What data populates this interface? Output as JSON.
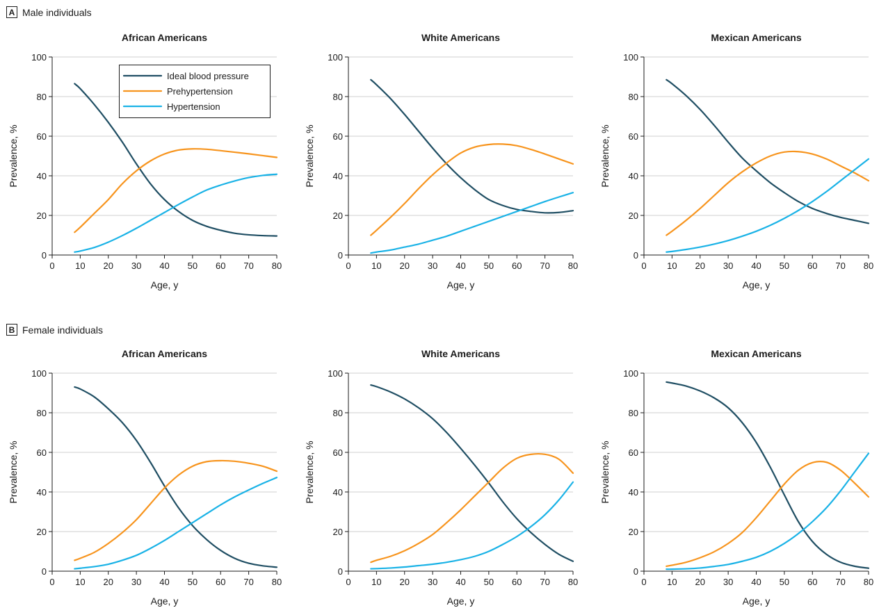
{
  "panels": [
    {
      "letter": "A",
      "title": "Male individuals"
    },
    {
      "letter": "B",
      "title": "Female individuals"
    }
  ],
  "colors": {
    "ideal": "#1f4e63",
    "prehyp": "#f7941d",
    "hyp": "#19b2e6"
  },
  "legend": [
    "Ideal blood pressure",
    "Prehypertension",
    "Hypertension"
  ],
  "chart_data": [
    {
      "type": "line",
      "panel": "A",
      "title": "African Americans",
      "xlabel": "Age, y",
      "ylabel": "Prevalence, %",
      "xlim": [
        0,
        80
      ],
      "ylim": [
        0,
        100
      ],
      "xticks": [
        0,
        10,
        20,
        30,
        40,
        50,
        60,
        70,
        80
      ],
      "yticks": [
        0,
        20,
        40,
        60,
        80,
        100
      ],
      "grid": true,
      "legend": "top-right",
      "x": [
        8,
        10,
        15,
        20,
        25,
        30,
        35,
        40,
        45,
        50,
        55,
        60,
        65,
        70,
        75,
        80
      ],
      "series": [
        {
          "name": "Ideal blood pressure",
          "values": [
            86.5,
            84,
            76,
            67,
            57,
            46,
            36,
            28,
            22,
            17.5,
            14.5,
            12.5,
            11,
            10.2,
            9.8,
            9.6
          ]
        },
        {
          "name": "Prehypertension",
          "values": [
            11.5,
            14,
            21,
            28,
            36,
            42.5,
            47.5,
            51,
            53,
            53.6,
            53.4,
            52.7,
            51.9,
            51.1,
            50.2,
            49.3
          ]
        },
        {
          "name": "Hypertension",
          "values": [
            1.5,
            2,
            3.8,
            6.5,
            9.8,
            13.5,
            17.5,
            21.5,
            25.5,
            29.3,
            32.8,
            35.3,
            37.4,
            39.1,
            40.2,
            40.8
          ]
        }
      ]
    },
    {
      "type": "line",
      "panel": "A",
      "title": "White Americans",
      "xlabel": "Age, y",
      "ylabel": "Prevalence, %",
      "xlim": [
        0,
        80
      ],
      "ylim": [
        0,
        100
      ],
      "xticks": [
        0,
        10,
        20,
        30,
        40,
        50,
        60,
        70,
        80
      ],
      "yticks": [
        0,
        20,
        40,
        60,
        80,
        100
      ],
      "grid": true,
      "x": [
        8,
        10,
        15,
        20,
        25,
        30,
        35,
        40,
        45,
        50,
        55,
        60,
        65,
        70,
        75,
        80
      ],
      "series": [
        {
          "name": "Ideal blood pressure",
          "values": [
            88.5,
            86,
            79,
            71,
            62.5,
            54,
            46,
            39,
            33,
            28,
            25,
            23,
            22,
            21.3,
            21.5,
            22.4
          ]
        },
        {
          "name": "Prehypertension",
          "values": [
            10,
            12.5,
            19,
            26,
            33.5,
            40.5,
            46.5,
            51.5,
            54.5,
            55.8,
            56,
            55.2,
            53.3,
            51,
            48.5,
            46
          ]
        },
        {
          "name": "Hypertension",
          "values": [
            1,
            1.5,
            2.5,
            4,
            5.5,
            7.5,
            9.5,
            12,
            14.5,
            17,
            19.5,
            22,
            24.5,
            27,
            29.3,
            31.5
          ]
        }
      ]
    },
    {
      "type": "line",
      "panel": "A",
      "title": "Mexican Americans",
      "xlabel": "Age, y",
      "ylabel": "Prevalence, %",
      "xlim": [
        0,
        80
      ],
      "ylim": [
        0,
        100
      ],
      "xticks": [
        0,
        10,
        20,
        30,
        40,
        50,
        60,
        70,
        80
      ],
      "yticks": [
        0,
        20,
        40,
        60,
        80,
        100
      ],
      "grid": true,
      "x": [
        8,
        10,
        15,
        20,
        25,
        30,
        35,
        40,
        45,
        50,
        55,
        60,
        65,
        70,
        75,
        80
      ],
      "series": [
        {
          "name": "Ideal blood pressure",
          "values": [
            88.5,
            86.5,
            80.5,
            73.5,
            65.5,
            57,
            49,
            42.5,
            36.5,
            31.5,
            27,
            23.5,
            21,
            19,
            17.5,
            16
          ]
        },
        {
          "name": "Prehypertension",
          "values": [
            10,
            12,
            17.5,
            23.5,
            30,
            36.5,
            42,
            46.5,
            50,
            52,
            52.2,
            51,
            48.5,
            45,
            41.5,
            37.5
          ]
        },
        {
          "name": "Hypertension",
          "values": [
            1.5,
            1.8,
            2.8,
            4,
            5.5,
            7.3,
            9.5,
            12,
            15,
            18.5,
            22.5,
            27,
            32,
            37.5,
            43,
            48.5
          ]
        }
      ]
    },
    {
      "type": "line",
      "panel": "B",
      "title": "African Americans",
      "xlabel": "Age, y",
      "ylabel": "Prevalence, %",
      "xlim": [
        0,
        80
      ],
      "ylim": [
        0,
        100
      ],
      "xticks": [
        0,
        10,
        20,
        30,
        40,
        50,
        60,
        70,
        80
      ],
      "yticks": [
        0,
        20,
        40,
        60,
        80,
        100
      ],
      "grid": true,
      "x": [
        8,
        10,
        15,
        20,
        25,
        30,
        35,
        40,
        45,
        50,
        55,
        60,
        65,
        70,
        75,
        80
      ],
      "series": [
        {
          "name": "Ideal blood pressure",
          "values": [
            93,
            92,
            88,
            82,
            75,
            66,
            55,
            43,
            32,
            23,
            16,
            10.5,
            6.5,
            4,
            2.7,
            2
          ]
        },
        {
          "name": "Prehypertension",
          "values": [
            5.5,
            6.5,
            9.5,
            14,
            19.5,
            26,
            34,
            42,
            48.5,
            53,
            55.3,
            55.8,
            55.5,
            54.5,
            53,
            50.5
          ]
        },
        {
          "name": "Hypertension",
          "values": [
            1.2,
            1.5,
            2.3,
            3.5,
            5.5,
            8,
            11.5,
            15.5,
            20,
            24.5,
            29,
            33.5,
            37.5,
            41,
            44.3,
            47.3
          ]
        }
      ]
    },
    {
      "type": "line",
      "panel": "B",
      "title": "White Americans",
      "xlabel": "Age, y",
      "ylabel": "Prevalence, %",
      "xlim": [
        0,
        80
      ],
      "ylim": [
        0,
        100
      ],
      "xticks": [
        0,
        10,
        20,
        30,
        40,
        50,
        60,
        70,
        80
      ],
      "yticks": [
        0,
        20,
        40,
        60,
        80,
        100
      ],
      "grid": true,
      "x": [
        8,
        10,
        15,
        20,
        25,
        30,
        35,
        40,
        45,
        50,
        55,
        60,
        65,
        70,
        75,
        80
      ],
      "series": [
        {
          "name": "Ideal blood pressure",
          "values": [
            94,
            93.2,
            90.5,
            87,
            82.5,
            77,
            70,
            62,
            53.5,
            44.5,
            35,
            26.5,
            19.5,
            13.5,
            8.5,
            5
          ]
        },
        {
          "name": "Prehypertension",
          "values": [
            4.5,
            5.5,
            7.5,
            10.3,
            14,
            18.5,
            24.5,
            31,
            38,
            45,
            52,
            57,
            59,
            59,
            56.5,
            49.5
          ]
        },
        {
          "name": "Hypertension",
          "values": [
            1.2,
            1.3,
            1.6,
            2.1,
            2.8,
            3.5,
            4.5,
            5.8,
            7.5,
            10,
            13.5,
            17.5,
            22.5,
            28.5,
            36,
            45
          ]
        }
      ]
    },
    {
      "type": "line",
      "panel": "B",
      "title": "Mexican Americans",
      "xlabel": "Age, y",
      "ylabel": "Prevalence, %",
      "xlim": [
        0,
        80
      ],
      "ylim": [
        0,
        100
      ],
      "xticks": [
        0,
        10,
        20,
        30,
        40,
        50,
        60,
        70,
        80
      ],
      "yticks": [
        0,
        20,
        40,
        60,
        80,
        100
      ],
      "grid": true,
      "x": [
        8,
        10,
        15,
        20,
        25,
        30,
        35,
        40,
        45,
        50,
        55,
        60,
        65,
        70,
        75,
        80
      ],
      "series": [
        {
          "name": "Ideal blood pressure",
          "values": [
            95.5,
            95,
            93.5,
            91,
            87.5,
            82.5,
            75,
            65,
            52.5,
            38.5,
            25,
            15,
            8.5,
            4.5,
            2.5,
            1.5
          ]
        },
        {
          "name": "Prehypertension",
          "values": [
            2.5,
            3,
            4.5,
            6.8,
            9.8,
            14,
            19.5,
            27,
            35.5,
            44,
            51,
            54.8,
            55,
            51,
            44.5,
            37.5
          ]
        },
        {
          "name": "Hypertension",
          "values": [
            1,
            1,
            1.2,
            1.6,
            2.4,
            3.4,
            5,
            7,
            10,
            14,
            19,
            25,
            32,
            40.5,
            50,
            59.5
          ]
        }
      ]
    }
  ]
}
